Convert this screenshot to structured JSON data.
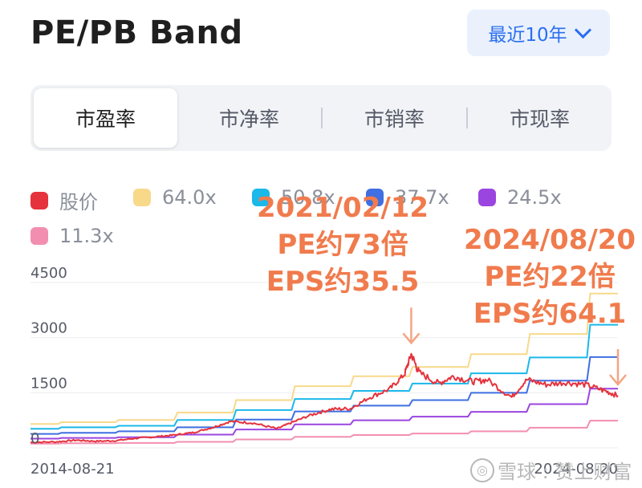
{
  "header": {
    "title": "PE/PB Band"
  },
  "range_select": {
    "label": "最近10年"
  },
  "tabs": [
    {
      "label": "市盈率",
      "active": true
    },
    {
      "label": "市净率",
      "active": false
    },
    {
      "label": "市销率",
      "active": false
    },
    {
      "label": "市现率",
      "active": false
    }
  ],
  "watermark": {
    "text": "雪球 : 赞上财富"
  },
  "annotations": [
    {
      "lines": [
        "2021/02/12",
        "PE约73倍",
        "EPS约35.5"
      ],
      "color": "#f07b4d"
    },
    {
      "lines": [
        "2024/08/20",
        "PE约22倍",
        "EPS约64.1"
      ],
      "color": "#f07b4d"
    }
  ],
  "chart_data": {
    "type": "line",
    "title": "",
    "xlabel": "",
    "ylabel": "",
    "x_start_label": "2014-08-21",
    "x_end_label": "2024-08-20",
    "x_range": [
      "2014-08-21",
      "2024-08-20"
    ],
    "ylim": [
      0,
      4500
    ],
    "yticks": [
      0,
      1500,
      3000,
      4500
    ],
    "grid": true,
    "legend_position": "top",
    "series": [
      {
        "name": "股价",
        "color": "#e5323c",
        "x": [
          "2014-08-21",
          "2015-02-01",
          "2015-06-01",
          "2015-10-01",
          "2016-02-01",
          "2016-06-01",
          "2016-10-01",
          "2017-02-01",
          "2017-06-01",
          "2017-10-01",
          "2018-01-15",
          "2018-06-01",
          "2018-10-30",
          "2019-02-01",
          "2019-06-01",
          "2019-10-01",
          "2020-02-01",
          "2020-06-01",
          "2020-10-01",
          "2021-01-01",
          "2021-02-12",
          "2021-04-01",
          "2021-08-01",
          "2021-11-01",
          "2022-03-01",
          "2022-06-01",
          "2022-10-30",
          "2023-02-01",
          "2023-06-01",
          "2023-10-01",
          "2024-02-01",
          "2024-06-01",
          "2024-08-20"
        ],
        "values": [
          150,
          165,
          210,
          180,
          195,
          260,
          300,
          350,
          420,
          560,
          720,
          680,
          520,
          690,
          900,
          1050,
          1070,
          1380,
          1600,
          2000,
          2550,
          2050,
          1750,
          1950,
          1800,
          1850,
          1380,
          1860,
          1720,
          1780,
          1720,
          1550,
          1420
        ]
      },
      {
        "name": "64.0x",
        "color": "#f8d98a",
        "x": [
          "2014-08-21",
          "2015-08-01",
          "2016-08-01",
          "2017-08-01",
          "2018-08-01",
          "2019-08-01",
          "2020-08-01",
          "2021-08-01",
          "2022-08-01",
          "2023-08-01",
          "2024-08-20"
        ],
        "values": [
          650,
          700,
          760,
          960,
          1300,
          1680,
          1950,
          2200,
          2550,
          3100,
          4200
        ]
      },
      {
        "name": "50.8x",
        "color": "#1bb8ea",
        "x": [
          "2014-08-21",
          "2015-08-01",
          "2016-08-01",
          "2017-08-01",
          "2018-08-01",
          "2019-08-01",
          "2020-08-01",
          "2021-08-01",
          "2022-08-01",
          "2023-08-01",
          "2024-08-20"
        ],
        "values": [
          520,
          560,
          600,
          760,
          1030,
          1330,
          1550,
          1750,
          2030,
          2460,
          3350
        ]
      },
      {
        "name": "37.7x",
        "color": "#3f6fe0",
        "x": [
          "2014-08-21",
          "2015-08-01",
          "2016-08-01",
          "2017-08-01",
          "2018-08-01",
          "2019-08-01",
          "2020-08-01",
          "2021-08-01",
          "2022-08-01",
          "2023-08-01",
          "2024-08-20"
        ],
        "values": [
          380,
          410,
          450,
          560,
          770,
          990,
          1150,
          1300,
          1500,
          1830,
          2470
        ]
      },
      {
        "name": "24.5x",
        "color": "#9b45e0",
        "x": [
          "2014-08-21",
          "2015-08-01",
          "2016-08-01",
          "2017-08-01",
          "2018-08-01",
          "2019-08-01",
          "2020-08-01",
          "2021-08-01",
          "2022-08-01",
          "2023-08-01",
          "2024-08-20"
        ],
        "values": [
          250,
          270,
          290,
          360,
          500,
          640,
          750,
          850,
          980,
          1190,
          1610
        ]
      },
      {
        "name": "11.3x",
        "color": "#f28fb1",
        "x": [
          "2014-08-21",
          "2015-08-01",
          "2016-08-01",
          "2017-08-01",
          "2018-08-01",
          "2019-08-01",
          "2020-08-01",
          "2021-08-01",
          "2022-08-01",
          "2023-08-01",
          "2024-08-20"
        ],
        "values": [
          115,
          125,
          135,
          165,
          230,
          300,
          350,
          390,
          450,
          550,
          740
        ]
      }
    ]
  }
}
